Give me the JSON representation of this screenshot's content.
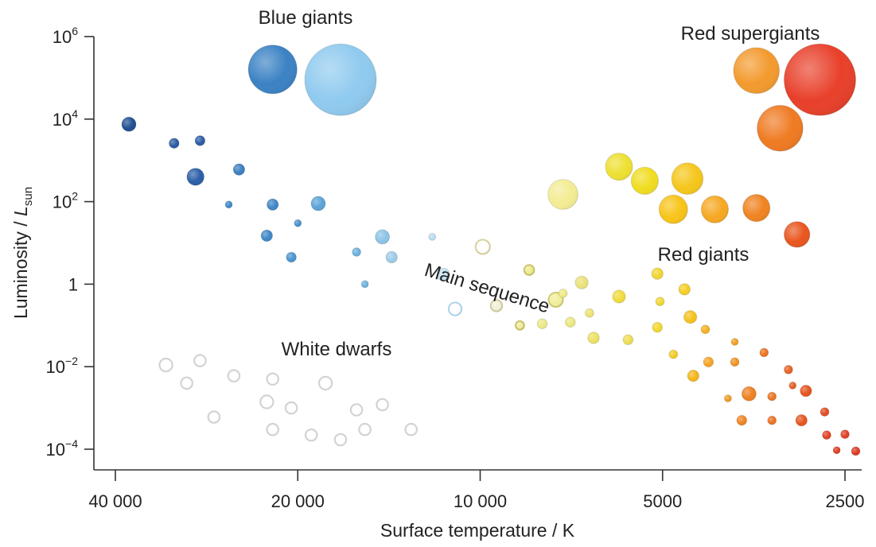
{
  "chart_data": {
    "type": "scatter",
    "title": "",
    "xlabel": "Surface temperature / K",
    "ylabel_main": "Luminosity / ",
    "ylabel_italic": "L",
    "ylabel_sub": "sun",
    "x_scale": "log (reversed)",
    "y_scale": "log",
    "xlim": [
      44000,
      2300
    ],
    "ylim": [
      3e-05,
      2000000
    ],
    "x_ticks": [
      {
        "value": 40000,
        "label": "40 000"
      },
      {
        "value": 20000,
        "label": "20 000"
      },
      {
        "value": 10000,
        "label": "10 000"
      },
      {
        "value": 5000,
        "label": "5000"
      },
      {
        "value": 2500,
        "label": "2500"
      }
    ],
    "y_ticks": [
      {
        "value": 1000000,
        "base": "10",
        "exp": "6"
      },
      {
        "value": 10000,
        "base": "10",
        "exp": "4"
      },
      {
        "value": 100,
        "base": "10",
        "exp": "2"
      },
      {
        "value": 1,
        "base": "1",
        "exp": ""
      },
      {
        "value": 0.01,
        "base": "10",
        "exp": "−2"
      },
      {
        "value": 0.0001,
        "base": "10",
        "exp": "−4"
      }
    ],
    "region_labels": [
      "Blue giants",
      "Red supergiants",
      "Red giants",
      "Main sequence",
      "White dwarfs"
    ],
    "series": [
      {
        "name": "Blue giants",
        "points": [
          {
            "x": 22000,
            "y": 160000,
            "size": 3.4,
            "color": "#3b82c4"
          },
          {
            "x": 17000,
            "y": 90000,
            "size": 5.0,
            "color": "#8fcaef"
          }
        ]
      },
      {
        "name": "Red supergiants",
        "points": [
          {
            "x": 3500,
            "y": 150000,
            "size": 3.2,
            "color": "#f39a2e"
          },
          {
            "x": 2750,
            "y": 90000,
            "size": 5.0,
            "color": "#e8402a"
          },
          {
            "x": 3200,
            "y": 6000,
            "size": 3.2,
            "color": "#ef7a22"
          }
        ]
      },
      {
        "name": "Red giants",
        "points": [
          {
            "x": 7300,
            "y": 150,
            "size": 2.1,
            "color": "#f3ec93"
          },
          {
            "x": 5900,
            "y": 700,
            "size": 1.9,
            "color": "#ede032"
          },
          {
            "x": 5350,
            "y": 320,
            "size": 1.9,
            "color": "#f0dd20"
          },
          {
            "x": 4550,
            "y": 360,
            "size": 2.2,
            "color": "#f5c61b"
          },
          {
            "x": 4800,
            "y": 65,
            "size": 2.0,
            "color": "#f7c417"
          },
          {
            "x": 4100,
            "y": 65,
            "size": 1.9,
            "color": "#f6a822"
          },
          {
            "x": 3500,
            "y": 70,
            "size": 1.9,
            "color": "#ef8321"
          },
          {
            "x": 3000,
            "y": 16,
            "size": 1.8,
            "color": "#e9561f"
          }
        ]
      },
      {
        "name": "Main sequence",
        "points": [
          {
            "x": 38000,
            "y": 7500,
            "size": 1.0,
            "color": "#1f4f92"
          },
          {
            "x": 32000,
            "y": 2600,
            "size": 0.7,
            "color": "#2a5aa1"
          },
          {
            "x": 29000,
            "y": 3000,
            "size": 0.7,
            "color": "#2c5ca5"
          },
          {
            "x": 29500,
            "y": 400,
            "size": 1.2,
            "color": "#2b5fa8"
          },
          {
            "x": 25000,
            "y": 600,
            "size": 0.8,
            "color": "#3b7fc1"
          },
          {
            "x": 26000,
            "y": 85,
            "size": 0.5,
            "color": "#3f86c7"
          },
          {
            "x": 22000,
            "y": 85,
            "size": 0.8,
            "color": "#3f86c7"
          },
          {
            "x": 20000,
            "y": 30,
            "size": 0.5,
            "color": "#4891cd"
          },
          {
            "x": 18500,
            "y": 90,
            "size": 1.0,
            "color": "#5aa3d8"
          },
          {
            "x": 22500,
            "y": 15,
            "size": 0.8,
            "color": "#3f88c8"
          },
          {
            "x": 20500,
            "y": 4.5,
            "size": 0.7,
            "color": "#4a94cf"
          },
          {
            "x": 16000,
            "y": 6,
            "size": 0.6,
            "color": "#6cb1df"
          },
          {
            "x": 14500,
            "y": 14,
            "size": 1.0,
            "color": "#8cc4e7"
          },
          {
            "x": 14000,
            "y": 4.5,
            "size": 0.8,
            "color": "#9ccce9"
          },
          {
            "x": 12000,
            "y": 14,
            "size": 0.5,
            "color": "#bcdcf0"
          },
          {
            "x": 15500,
            "y": 1,
            "size": 0.5,
            "color": "#6cb1df"
          },
          {
            "x": 11500,
            "y": 1.7,
            "size": 0.9,
            "color": "#c4e2f3"
          },
          {
            "x": 11000,
            "y": 0.25,
            "size": 0.9,
            "color": "#ffffff",
            "stroke": "#a9d2ec"
          },
          {
            "x": 9900,
            "y": 8,
            "size": 1.0,
            "color": "#ffffff",
            "stroke": "#d8d09a"
          },
          {
            "x": 9400,
            "y": 0.3,
            "size": 0.8,
            "color": "#f2f0d8",
            "stroke": "#cfc89a"
          },
          {
            "x": 8300,
            "y": 2.2,
            "size": 0.7,
            "color": "#ecea8e",
            "stroke": "#c9c36a"
          },
          {
            "x": 7500,
            "y": 0.42,
            "size": 1.0,
            "color": "#f0ef9a",
            "stroke": "#cdc873"
          },
          {
            "x": 8600,
            "y": 0.1,
            "size": 0.6,
            "color": "#edeb9c",
            "stroke": "#c8c16b"
          },
          {
            "x": 7900,
            "y": 0.11,
            "size": 0.7,
            "color": "#ece888"
          },
          {
            "x": 7300,
            "y": 0.6,
            "size": 0.6,
            "color": "#eeea86"
          },
          {
            "x": 7100,
            "y": 0.12,
            "size": 0.7,
            "color": "#ece77c"
          },
          {
            "x": 6800,
            "y": 1.1,
            "size": 0.9,
            "color": "#ebe278"
          },
          {
            "x": 6600,
            "y": 0.2,
            "size": 0.6,
            "color": "#ece46f"
          },
          {
            "x": 6500,
            "y": 0.05,
            "size": 0.8,
            "color": "#ede062"
          },
          {
            "x": 5900,
            "y": 0.5,
            "size": 0.9,
            "color": "#f0dc3c"
          },
          {
            "x": 5700,
            "y": 0.045,
            "size": 0.7,
            "color": "#eedd50"
          },
          {
            "x": 5100,
            "y": 1.8,
            "size": 0.8,
            "color": "#f2d531"
          },
          {
            "x": 5050,
            "y": 0.38,
            "size": 0.6,
            "color": "#f0d830"
          },
          {
            "x": 5100,
            "y": 0.09,
            "size": 0.7,
            "color": "#f1d72c"
          },
          {
            "x": 4600,
            "y": 0.75,
            "size": 0.8,
            "color": "#f5cf26"
          },
          {
            "x": 4500,
            "y": 0.16,
            "size": 0.9,
            "color": "#f5c21c"
          },
          {
            "x": 4800,
            "y": 0.02,
            "size": 0.6,
            "color": "#f2cc22"
          },
          {
            "x": 4450,
            "y": 0.006,
            "size": 0.8,
            "color": "#f6b61a"
          },
          {
            "x": 4250,
            "y": 0.08,
            "size": 0.6,
            "color": "#f5b01e"
          },
          {
            "x": 4200,
            "y": 0.013,
            "size": 0.7,
            "color": "#f5a421"
          },
          {
            "x": 3800,
            "y": 0.04,
            "size": 0.5,
            "color": "#f29e22"
          },
          {
            "x": 3800,
            "y": 0.013,
            "size": 0.6,
            "color": "#f09322"
          },
          {
            "x": 3600,
            "y": 0.0022,
            "size": 1.0,
            "color": "#ee7f21"
          },
          {
            "x": 3400,
            "y": 0.022,
            "size": 0.6,
            "color": "#ec7322"
          },
          {
            "x": 3900,
            "y": 0.0017,
            "size": 0.5,
            "color": "#f09b22"
          },
          {
            "x": 3300,
            "y": 0.0019,
            "size": 0.6,
            "color": "#ec7422"
          },
          {
            "x": 3100,
            "y": 0.0085,
            "size": 0.6,
            "color": "#e76122"
          },
          {
            "x": 3050,
            "y": 0.0035,
            "size": 0.5,
            "color": "#e65c21"
          },
          {
            "x": 2900,
            "y": 0.0026,
            "size": 0.8,
            "color": "#e5531f"
          },
          {
            "x": 3700,
            "y": 0.0005,
            "size": 0.7,
            "color": "#ef8521"
          },
          {
            "x": 3300,
            "y": 0.0005,
            "size": 0.6,
            "color": "#ec7122"
          },
          {
            "x": 2950,
            "y": 0.0005,
            "size": 0.8,
            "color": "#e5561f"
          },
          {
            "x": 2700,
            "y": 0.0008,
            "size": 0.6,
            "color": "#e34a20"
          },
          {
            "x": 2680,
            "y": 0.00022,
            "size": 0.6,
            "color": "#e14321"
          },
          {
            "x": 2500,
            "y": 0.00023,
            "size": 0.6,
            "color": "#e04021"
          },
          {
            "x": 2580,
            "y": 9.5e-05,
            "size": 0.5,
            "color": "#e03c21"
          },
          {
            "x": 2400,
            "y": 9e-05,
            "size": 0.6,
            "color": "#df3820"
          }
        ]
      },
      {
        "name": "White dwarfs",
        "points": [
          {
            "x": 33000,
            "y": 0.011,
            "size": 0.9
          },
          {
            "x": 29000,
            "y": 0.014,
            "size": 0.8
          },
          {
            "x": 30500,
            "y": 0.004,
            "size": 0.8
          },
          {
            "x": 25500,
            "y": 0.006,
            "size": 0.8
          },
          {
            "x": 22500,
            "y": 0.0014,
            "size": 0.9
          },
          {
            "x": 22000,
            "y": 0.005,
            "size": 0.8
          },
          {
            "x": 20500,
            "y": 0.001,
            "size": 0.8
          },
          {
            "x": 18000,
            "y": 0.004,
            "size": 0.9
          },
          {
            "x": 27500,
            "y": 0.0006,
            "size": 0.8
          },
          {
            "x": 22000,
            "y": 0.0003,
            "size": 0.8
          },
          {
            "x": 16000,
            "y": 0.0009,
            "size": 0.8
          },
          {
            "x": 14500,
            "y": 0.0012,
            "size": 0.8
          },
          {
            "x": 19000,
            "y": 0.00022,
            "size": 0.8
          },
          {
            "x": 17000,
            "y": 0.00017,
            "size": 0.8
          },
          {
            "x": 15500,
            "y": 0.0003,
            "size": 0.8
          },
          {
            "x": 13000,
            "y": 0.0003,
            "size": 0.8
          }
        ]
      }
    ]
  }
}
